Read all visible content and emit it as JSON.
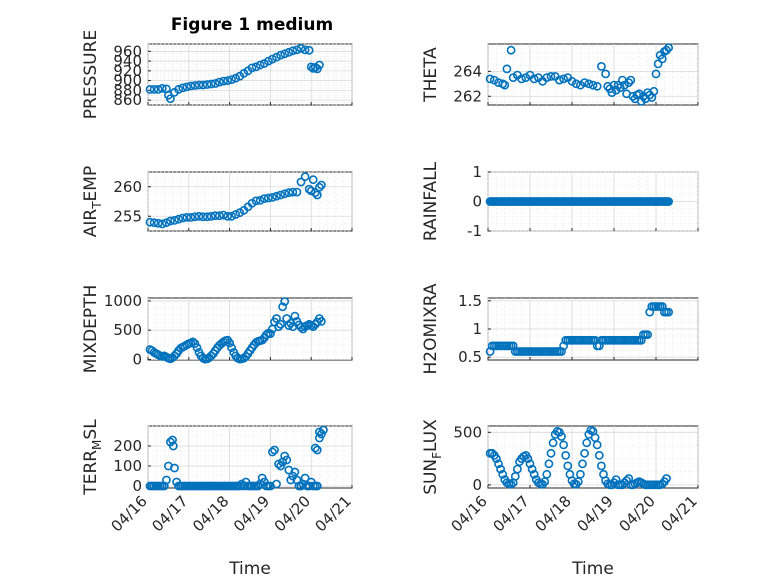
{
  "window": {
    "figure_title": "Figure 1 medium"
  },
  "style": {
    "marker_color": "#0072BD",
    "marker": "circle-open",
    "grid": true,
    "minor_grid": true
  },
  "chart_data": [
    {
      "type": "scatter",
      "ylabel": "PRESSURE",
      "xlabel": "",
      "xlim": [
        0,
        5
      ],
      "ylim": [
        850,
        975
      ],
      "yticks": [
        860,
        880,
        900,
        920,
        940,
        960
      ],
      "ytick_labels": [
        "860",
        "880",
        "900",
        "920",
        "940",
        "960"
      ],
      "x": [
        0.05,
        0.15,
        0.25,
        0.35,
        0.45,
        0.5,
        0.55,
        0.65,
        0.75,
        0.85,
        0.95,
        1.05,
        1.15,
        1.25,
        1.35,
        1.45,
        1.55,
        1.65,
        1.75,
        1.85,
        1.95,
        2.05,
        2.15,
        2.25,
        2.35,
        2.45,
        2.55,
        2.65,
        2.75,
        2.85,
        2.95,
        3.05,
        3.15,
        3.25,
        3.35,
        3.45,
        3.55,
        3.65,
        3.75,
        3.85,
        3.95,
        4.0,
        4.05,
        4.1,
        4.15,
        4.2
      ],
      "y": [
        882,
        882,
        882,
        884,
        883,
        870,
        863,
        876,
        882,
        885,
        887,
        889,
        890,
        891,
        891,
        892,
        893,
        894,
        897,
        899,
        900,
        902,
        905,
        909,
        915,
        920,
        926,
        928,
        932,
        935,
        940,
        944,
        948,
        952,
        955,
        958,
        961,
        963,
        966,
        963,
        962,
        928,
        925,
        927,
        924,
        932
      ]
    },
    {
      "type": "scatter",
      "ylabel": "THETA",
      "xlabel": "",
      "xlim": [
        0,
        5
      ],
      "ylim": [
        261.3,
        266.2
      ],
      "yticks": [
        262,
        264
      ],
      "ytick_labels": [
        "262",
        "264"
      ],
      "x": [
        0.05,
        0.15,
        0.25,
        0.35,
        0.4,
        0.45,
        0.55,
        0.6,
        0.7,
        0.8,
        0.9,
        1.0,
        1.1,
        1.2,
        1.3,
        1.4,
        1.5,
        1.6,
        1.7,
        1.8,
        1.9,
        2.0,
        2.1,
        2.2,
        2.3,
        2.4,
        2.5,
        2.6,
        2.7,
        2.8,
        2.85,
        2.9,
        2.95,
        3.0,
        3.05,
        3.1,
        3.15,
        3.2,
        3.25,
        3.3,
        3.35,
        3.4,
        3.45,
        3.5,
        3.55,
        3.6,
        3.65,
        3.7,
        3.75,
        3.8,
        3.85,
        3.9,
        3.95,
        4.0,
        4.05,
        4.1,
        4.15,
        4.2,
        4.25,
        4.3
      ],
      "y": [
        263.4,
        263.3,
        263.1,
        263.0,
        262.9,
        264.2,
        265.7,
        263.5,
        263.7,
        263.4,
        263.5,
        263.7,
        263.4,
        263.5,
        263.2,
        263.5,
        263.6,
        263.6,
        263.3,
        263.4,
        263.5,
        263.2,
        263.0,
        262.9,
        263.1,
        263.0,
        262.9,
        262.8,
        264.4,
        263.8,
        262.8,
        262.6,
        262.3,
        262.9,
        262.5,
        262.9,
        262.7,
        263.3,
        262.9,
        262.2,
        263.1,
        263.3,
        262.0,
        261.8,
        262.1,
        262.2,
        261.6,
        262.0,
        261.8,
        262.3,
        262.1,
        261.9,
        262.4,
        263.8,
        264.6,
        265.3,
        265.0,
        265.6,
        265.7,
        265.9
      ]
    },
    {
      "type": "scatter",
      "ylabel": "AIR_TEMP",
      "xlabel": "",
      "xlim": [
        0,
        5
      ],
      "ylim": [
        252.5,
        262.5
      ],
      "yticks": [
        255,
        260
      ],
      "ytick_labels": [
        "255",
        "260"
      ],
      "x": [
        0.05,
        0.15,
        0.25,
        0.35,
        0.45,
        0.55,
        0.65,
        0.75,
        0.85,
        0.95,
        1.05,
        1.15,
        1.25,
        1.35,
        1.45,
        1.55,
        1.65,
        1.75,
        1.85,
        1.95,
        2.05,
        2.15,
        2.25,
        2.35,
        2.45,
        2.55,
        2.65,
        2.75,
        2.85,
        2.95,
        3.05,
        3.15,
        3.25,
        3.35,
        3.45,
        3.55,
        3.65,
        3.75,
        3.85,
        3.95,
        4.0,
        4.05,
        4.1,
        4.15,
        4.2,
        4.25
      ],
      "y": [
        254.0,
        253.9,
        253.8,
        253.7,
        253.9,
        254.2,
        254.3,
        254.5,
        254.7,
        254.8,
        254.8,
        254.9,
        255.0,
        254.9,
        254.9,
        255.0,
        255.1,
        255.1,
        255.2,
        255.0,
        255.0,
        255.3,
        255.6,
        256.0,
        256.6,
        257.2,
        257.6,
        257.7,
        258.0,
        258.1,
        258.2,
        258.4,
        258.6,
        258.8,
        259.0,
        259.1,
        259.1,
        260.8,
        261.7,
        259.6,
        259.3,
        261.2,
        259.0,
        258.6,
        259.9,
        260.3
      ]
    },
    {
      "type": "scatter",
      "ylabel": "RAINFALL",
      "xlabel": "",
      "xlim": [
        0,
        5
      ],
      "ylim": [
        -1,
        1
      ],
      "yticks": [
        -1,
        0,
        1
      ],
      "ytick_labels": [
        "-1",
        "0",
        "1"
      ],
      "x_range": [
        0.05,
        4.3
      ],
      "constant_value": 0,
      "count": 120
    },
    {
      "type": "scatter",
      "ylabel": "MIXDEPTH",
      "xlabel": "",
      "xlim": [
        0,
        5
      ],
      "ylim": [
        -10,
        1050
      ],
      "yticks": [
        0,
        500,
        1000
      ],
      "ytick_labels": [
        "0",
        "500",
        "1000"
      ],
      "x": [
        0.05,
        0.1,
        0.15,
        0.2,
        0.25,
        0.3,
        0.35,
        0.4,
        0.45,
        0.5,
        0.55,
        0.6,
        0.65,
        0.7,
        0.75,
        0.8,
        0.85,
        0.9,
        0.95,
        1.0,
        1.05,
        1.1,
        1.15,
        1.2,
        1.25,
        1.3,
        1.35,
        1.4,
        1.45,
        1.5,
        1.55,
        1.6,
        1.65,
        1.7,
        1.75,
        1.8,
        1.85,
        1.9,
        1.95,
        2.0,
        2.05,
        2.1,
        2.15,
        2.2,
        2.25,
        2.3,
        2.35,
        2.4,
        2.45,
        2.5,
        2.55,
        2.6,
        2.65,
        2.7,
        2.75,
        2.8,
        2.85,
        2.9,
        2.95,
        3.0,
        3.05,
        3.1,
        3.15,
        3.2,
        3.25,
        3.3,
        3.35,
        3.4,
        3.45,
        3.5,
        3.55,
        3.6,
        3.65,
        3.7,
        3.75,
        3.8,
        3.85,
        3.9,
        3.95,
        4.0,
        4.05,
        4.1,
        4.15,
        4.2,
        4.25
      ],
      "y": [
        170,
        150,
        120,
        100,
        80,
        60,
        50,
        60,
        40,
        20,
        10,
        30,
        60,
        100,
        150,
        190,
        210,
        230,
        250,
        270,
        280,
        300,
        270,
        200,
        120,
        60,
        20,
        5,
        10,
        30,
        60,
        100,
        150,
        200,
        240,
        270,
        300,
        320,
        330,
        280,
        200,
        120,
        60,
        20,
        5,
        10,
        20,
        50,
        100,
        150,
        200,
        250,
        290,
        310,
        320,
        330,
        370,
        420,
        450,
        440,
        520,
        640,
        700,
        560,
        600,
        900,
        990,
        700,
        580,
        620,
        560,
        740,
        650,
        590,
        550,
        520,
        560,
        580,
        600,
        580,
        560,
        600,
        640,
        700,
        650
      ]
    },
    {
      "type": "scatter",
      "ylabel": "H2OMIXRA",
      "xlabel": "",
      "xlim": [
        0,
        5
      ],
      "ylim": [
        0.45,
        1.55
      ],
      "yticks": [
        0.5,
        1,
        1.5
      ],
      "ytick_labels": [
        "0.5",
        "1",
        "1.5"
      ],
      "x": [
        0.05,
        0.1,
        0.15,
        0.2,
        0.25,
        0.3,
        0.35,
        0.4,
        0.45,
        0.5,
        0.55,
        0.6,
        0.65,
        0.7,
        0.75,
        0.8,
        0.85,
        0.9,
        0.95,
        1.0,
        1.05,
        1.1,
        1.15,
        1.2,
        1.25,
        1.3,
        1.35,
        1.4,
        1.45,
        1.5,
        1.55,
        1.6,
        1.65,
        1.7,
        1.75,
        1.8,
        1.85,
        1.9,
        1.95,
        2.0,
        2.05,
        2.1,
        2.15,
        2.2,
        2.25,
        2.3,
        2.35,
        2.4,
        2.45,
        2.5,
        2.55,
        2.6,
        2.65,
        2.7,
        2.75,
        2.8,
        2.85,
        2.9,
        2.95,
        3.0,
        3.05,
        3.1,
        3.15,
        3.2,
        3.25,
        3.3,
        3.35,
        3.4,
        3.45,
        3.5,
        3.55,
        3.6,
        3.65,
        3.7,
        3.75,
        3.8,
        3.85,
        3.9,
        3.95,
        4.0,
        4.05,
        4.1,
        4.15,
        4.2,
        4.25,
        4.3
      ],
      "y": [
        0.6,
        0.7,
        0.7,
        0.7,
        0.7,
        0.7,
        0.7,
        0.7,
        0.7,
        0.7,
        0.7,
        0.7,
        0.6,
        0.6,
        0.6,
        0.6,
        0.6,
        0.6,
        0.6,
        0.6,
        0.6,
        0.6,
        0.6,
        0.6,
        0.6,
        0.6,
        0.6,
        0.6,
        0.6,
        0.6,
        0.6,
        0.6,
        0.6,
        0.6,
        0.6,
        0.7,
        0.8,
        0.8,
        0.8,
        0.8,
        0.8,
        0.8,
        0.8,
        0.8,
        0.8,
        0.8,
        0.8,
        0.8,
        0.8,
        0.8,
        0.8,
        0.7,
        0.7,
        0.8,
        0.8,
        0.8,
        0.8,
        0.8,
        0.8,
        0.8,
        0.8,
        0.8,
        0.8,
        0.8,
        0.8,
        0.8,
        0.8,
        0.8,
        0.8,
        0.8,
        0.8,
        0.8,
        0.8,
        0.9,
        0.9,
        0.9,
        1.3,
        1.4,
        1.4,
        1.4,
        1.4,
        1.4,
        1.4,
        1.3,
        1.3,
        1.3
      ]
    },
    {
      "type": "scatter",
      "ylabel": "TERR_MSL",
      "xlabel": "Time",
      "xlim": [
        0,
        5
      ],
      "ylim": [
        -10,
        300
      ],
      "yticks": [
        0,
        100,
        200
      ],
      "ytick_labels": [
        "0",
        "100",
        "200"
      ],
      "xticks": [
        0,
        1,
        2,
        3,
        4,
        5
      ],
      "xtick_labels": [
        "04/16",
        "04/17",
        "04/18",
        "04/19",
        "04/20",
        "04/21"
      ],
      "x": [
        0.05,
        0.1,
        0.15,
        0.2,
        0.25,
        0.3,
        0.35,
        0.4,
        0.45,
        0.5,
        0.55,
        0.6,
        0.62,
        0.65,
        0.7,
        0.75,
        0.8,
        0.85,
        0.9,
        0.95,
        1.0,
        1.05,
        1.1,
        1.15,
        1.2,
        1.25,
        1.3,
        1.35,
        1.4,
        1.45,
        1.5,
        1.55,
        1.6,
        1.65,
        1.7,
        1.75,
        1.8,
        1.85,
        1.9,
        1.95,
        2.0,
        2.05,
        2.1,
        2.15,
        2.2,
        2.25,
        2.3,
        2.35,
        2.4,
        2.45,
        2.5,
        2.55,
        2.6,
        2.65,
        2.7,
        2.75,
        2.8,
        2.85,
        2.9,
        2.95,
        3.0,
        3.05,
        3.1,
        3.15,
        3.2,
        3.25,
        3.3,
        3.35,
        3.4,
        3.45,
        3.5,
        3.55,
        3.6,
        3.65,
        3.7,
        3.75,
        3.8,
        3.85,
        3.9,
        3.95,
        4.0,
        4.05,
        4.1,
        4.15,
        4.2,
        4.25,
        4.3,
        4.1,
        4.15,
        4.2
      ],
      "y": [
        0,
        0,
        0,
        0,
        0,
        0,
        0,
        0,
        30,
        100,
        220,
        230,
        200,
        90,
        20,
        0,
        0,
        0,
        0,
        0,
        0,
        0,
        0,
        0,
        0,
        0,
        0,
        0,
        0,
        0,
        0,
        0,
        0,
        0,
        0,
        0,
        0,
        0,
        0,
        0,
        0,
        0,
        0,
        0,
        0,
        0,
        10,
        0,
        20,
        0,
        0,
        0,
        0,
        0,
        0,
        10,
        40,
        20,
        0,
        0,
        0,
        170,
        180,
        10,
        110,
        100,
        120,
        150,
        130,
        80,
        30,
        50,
        70,
        30,
        0,
        0,
        10,
        40,
        0,
        0,
        20,
        0,
        0,
        0,
        240,
        260,
        280,
        190,
        180,
        270
      ]
    },
    {
      "type": "scatter",
      "ylabel": "SUN_FLUX",
      "xlabel": "Time",
      "xlim": [
        0,
        5
      ],
      "ylim": [
        -30,
        560
      ],
      "yticks": [
        0,
        500
      ],
      "ytick_labels": [
        "0",
        "500"
      ],
      "xticks": [
        0,
        1,
        2,
        3,
        4,
        5
      ],
      "xtick_labels": [
        "04/16",
        "04/17",
        "04/18",
        "04/19",
        "04/20",
        "04/21"
      ],
      "x": [
        0.05,
        0.1,
        0.15,
        0.2,
        0.25,
        0.3,
        0.35,
        0.4,
        0.45,
        0.5,
        0.55,
        0.6,
        0.65,
        0.7,
        0.75,
        0.8,
        0.85,
        0.9,
        0.95,
        1.0,
        1.05,
        1.1,
        1.15,
        1.2,
        1.25,
        1.3,
        1.35,
        1.4,
        1.45,
        1.5,
        1.55,
        1.6,
        1.65,
        1.7,
        1.75,
        1.8,
        1.85,
        1.9,
        1.95,
        2.0,
        2.05,
        2.1,
        2.15,
        2.2,
        2.25,
        2.3,
        2.35,
        2.4,
        2.45,
        2.5,
        2.55,
        2.6,
        2.65,
        2.7,
        2.75,
        2.8,
        2.85,
        2.9,
        2.95,
        3.0,
        3.05,
        3.1,
        3.15,
        3.2,
        3.25,
        3.3,
        3.35,
        3.4,
        3.45,
        3.5,
        3.55,
        3.6,
        3.65,
        3.7,
        3.75,
        3.8,
        3.85,
        3.9,
        3.95,
        4.0,
        4.05,
        4.1,
        4.15,
        4.2,
        4.25
      ],
      "y": [
        300,
        300,
        280,
        250,
        200,
        150,
        100,
        50,
        20,
        10,
        5,
        20,
        80,
        150,
        220,
        250,
        270,
        280,
        250,
        200,
        150,
        100,
        50,
        20,
        10,
        5,
        30,
        100,
        200,
        300,
        400,
        480,
        510,
        500,
        460,
        380,
        280,
        180,
        100,
        40,
        10,
        5,
        30,
        100,
        200,
        300,
        400,
        480,
        520,
        510,
        450,
        380,
        280,
        180,
        100,
        40,
        10,
        0,
        0,
        20,
        50,
        0,
        0,
        0,
        20,
        40,
        60,
        0,
        0,
        10,
        20,
        30,
        20,
        10,
        0,
        0,
        0,
        0,
        0,
        0,
        0,
        0,
        10,
        30,
        60
      ]
    }
  ]
}
